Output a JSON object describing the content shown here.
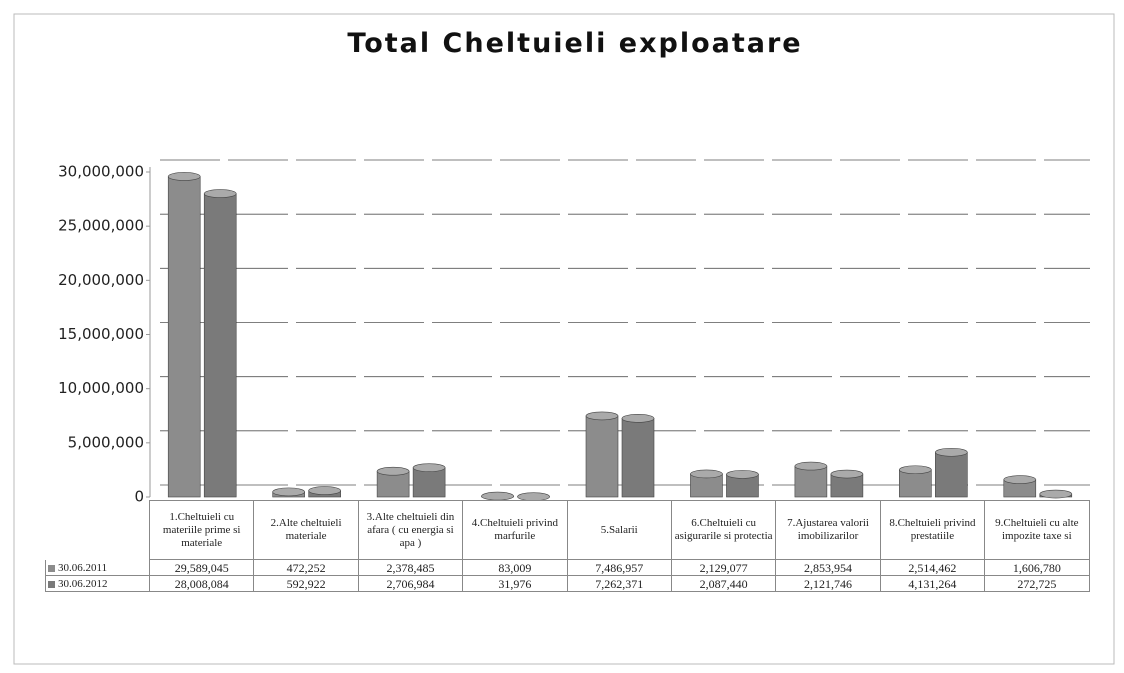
{
  "chart_data": {
    "type": "bar",
    "title": "Total Cheltuieli exploatare",
    "categories": [
      "1.Cheltuieli cu materiile prime si materiale",
      "2.Alte cheltuieli materiale",
      "3.Alte cheltuieli din afara ( cu energia si apa )",
      "4.Cheltuieli privind marfurile",
      "5.Salarii",
      "6.Cheltuieli cu asigurarile si protectia",
      "7.Ajustarea valorii imobilizarilor",
      "8.Cheltuieli privind prestatiile",
      "9.Cheltuieli cu alte impozite taxe si"
    ],
    "series": [
      {
        "name": "30.06.2011",
        "color": "#8c8c8c",
        "values": [
          29589045,
          472252,
          2378485,
          83009,
          7486957,
          2129077,
          2853954,
          2514462,
          1606780
        ],
        "value_labels": [
          "29,589,045",
          "472,252",
          "2,378,485",
          "83,009",
          "7,486,957",
          "2,129,077",
          "2,853,954",
          "2,514,462",
          "1,606,780"
        ]
      },
      {
        "name": "30.06.2012",
        "color": "#7a7a7a",
        "values": [
          28008084,
          592922,
          2706984,
          31976,
          7262371,
          2087440,
          2121746,
          4131264,
          272725
        ],
        "value_labels": [
          "28,008,084",
          "592,922",
          "2,706,984",
          "31,976",
          "7,262,371",
          "2,087,440",
          "2,121,746",
          "4,131,264",
          "272,725"
        ]
      }
    ],
    "ylim": [
      0,
      30000000
    ],
    "yticks": [
      0,
      {
        "value": 5000000,
        "label": "5,000,000"
      },
      {
        "value": 10000000,
        "label": "10,000,000"
      },
      {
        "value": 15000000,
        "label": "15,000,000"
      },
      {
        "value": 20000000,
        "label": "20,000,000"
      },
      {
        "value": 25000000,
        "label": "25,000,000"
      },
      {
        "value": 30000000,
        "label": "30,000,000"
      }
    ],
    "grid": true
  }
}
